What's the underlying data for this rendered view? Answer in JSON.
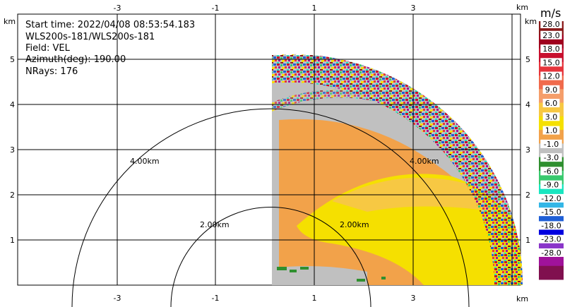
{
  "info": {
    "start_time": "Start time: 2022/04/08 08:53:54.183",
    "site": "WLS200s-181/WLS200s-181",
    "field": "Field: VEL",
    "azimuth": "Azimuth(deg): 190.00",
    "nrays": "NRays: 176"
  },
  "axis": {
    "unit": "km",
    "x_ticks": [
      "-3",
      "-1",
      "1",
      "3"
    ],
    "y_ticks": [
      "1",
      "2",
      "3",
      "4",
      "5"
    ]
  },
  "range_rings": [
    {
      "label": "2.00km"
    },
    {
      "label": "4.00km"
    }
  ],
  "colorbar": {
    "unit": "m/s",
    "labels": [
      "28.0",
      "23.0",
      "18.0",
      "15.0",
      "12.0",
      "9.0",
      "6.0",
      "3.0",
      "1.0",
      "-1.0",
      "-3.0",
      "-6.0",
      "-9.0",
      "-12.0",
      "-15.0",
      "-18.0",
      "-23.0",
      "-28.0"
    ],
    "colors": [
      "#8b1a1a",
      "#a0001e",
      "#c8102e",
      "#e6353c",
      "#f06a4c",
      "#f59e6a",
      "#f7c843",
      "#f5e000",
      "#f2a24a",
      "#c0c0c0",
      "#2f8f2f",
      "#39c96e",
      "#19e6c0",
      "#33b6e6",
      "#1f5fd6",
      "#0000e0",
      "#8a35c9",
      "#a0129a",
      "#80104f"
    ],
    "scheme": "velocity diverging"
  }
}
